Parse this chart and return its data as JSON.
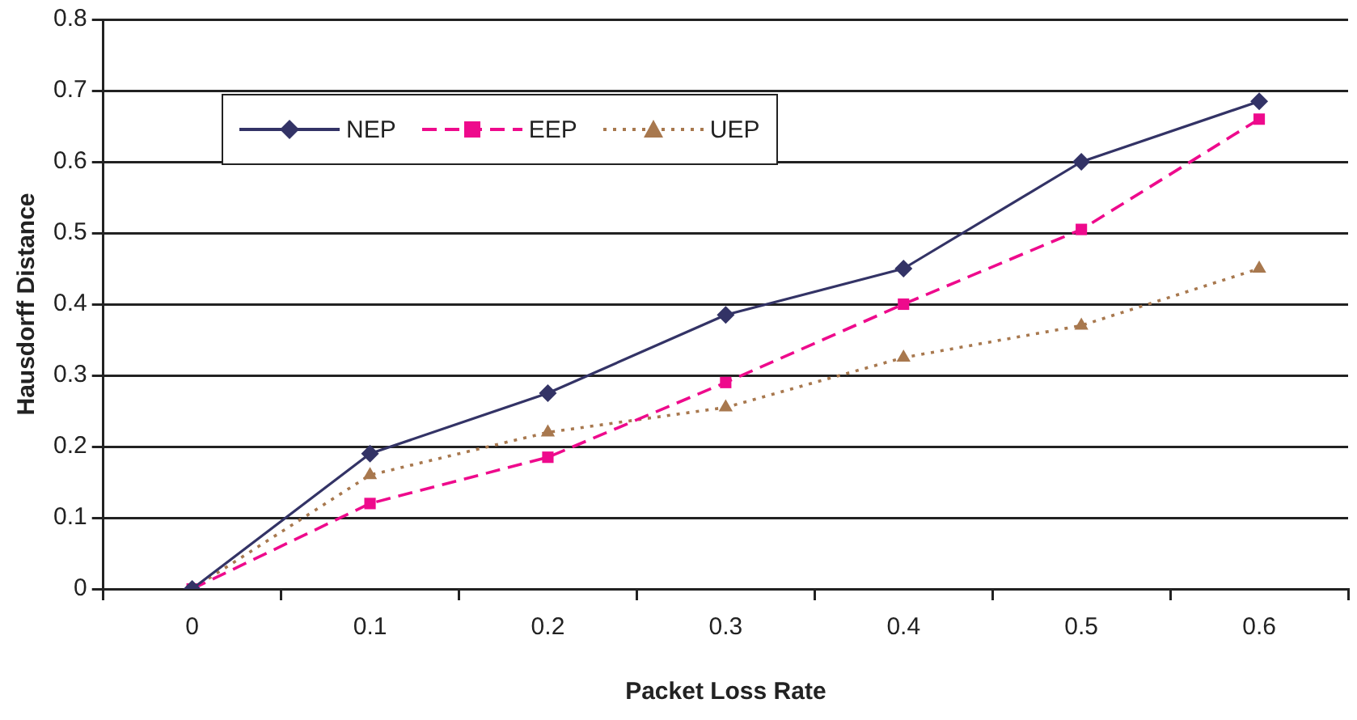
{
  "chart_data": {
    "type": "line",
    "xlabel": "Packet Loss Rate",
    "ylabel": "Hausdorff Distance",
    "categories": [
      "0",
      "0.1",
      "0.2",
      "0.3",
      "0.4",
      "0.5",
      "0.6"
    ],
    "series": [
      {
        "name": "NEP",
        "color": "#333366",
        "marker": "diamond",
        "line_style": "solid",
        "values": [
          0,
          0.19,
          0.275,
          0.385,
          0.45,
          0.6,
          0.685
        ]
      },
      {
        "name": "EEP",
        "color": "#ee0a8c",
        "marker": "square",
        "line_style": "dashed",
        "values": [
          0,
          0.12,
          0.185,
          0.29,
          0.4,
          0.505,
          0.66
        ]
      },
      {
        "name": "UEP",
        "color": "#a8784e",
        "marker": "triangle",
        "line_style": "dotted",
        "values": [
          0,
          0.16,
          0.22,
          0.255,
          0.325,
          0.37,
          0.45
        ]
      }
    ],
    "ylim": [
      0,
      0.8
    ],
    "yticks": [
      0,
      0.1,
      0.2,
      0.3,
      0.4,
      0.5,
      0.6,
      0.7,
      0.8
    ],
    "grid": "y",
    "legend": "top left"
  }
}
